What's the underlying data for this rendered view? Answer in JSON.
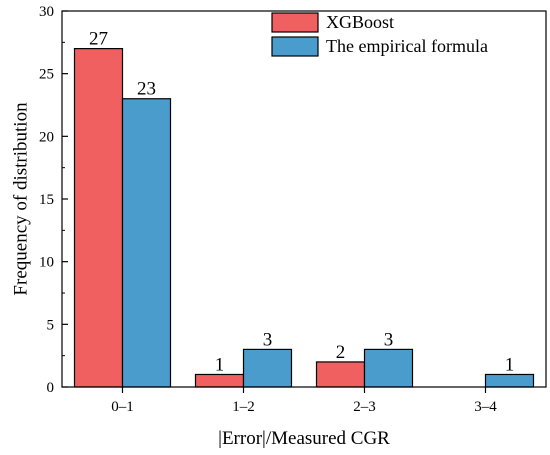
{
  "chart_data": {
    "type": "bar",
    "title": "",
    "xlabel": "|Error|/Measured CGR",
    "ylabel": "Frequency of distribution",
    "categories": [
      "0–1",
      "1–2",
      "2–3",
      "3–4"
    ],
    "series": [
      {
        "name": "XGBoost",
        "values": [
          27,
          1,
          2,
          0
        ],
        "labels": [
          "27",
          "1",
          "2",
          null
        ],
        "color": "#f06060"
      },
      {
        "name": "The empirical formula",
        "values": [
          23,
          3,
          3,
          1
        ],
        "labels": [
          "23",
          "3",
          "3",
          "1"
        ],
        "color": "#4a9ccc"
      }
    ],
    "ylim": [
      0,
      30
    ],
    "yticks": [
      0,
      5,
      10,
      15,
      20,
      25,
      30
    ],
    "grid": false,
    "legend_position": "top-right"
  }
}
